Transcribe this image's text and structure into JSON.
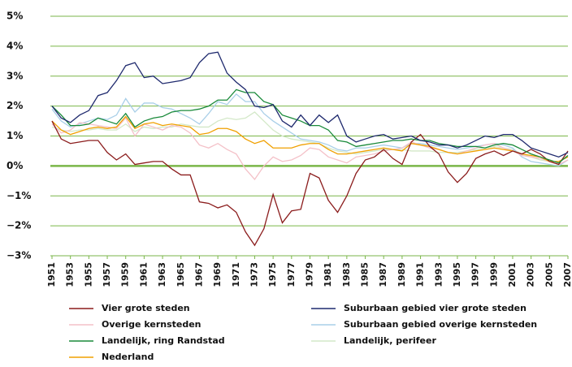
{
  "chart_data": {
    "type": "line",
    "x": [
      1951,
      1952,
      1953,
      1954,
      1955,
      1956,
      1957,
      1958,
      1959,
      1960,
      1961,
      1962,
      1963,
      1964,
      1965,
      1966,
      1967,
      1968,
      1969,
      1970,
      1971,
      1972,
      1973,
      1974,
      1975,
      1976,
      1977,
      1978,
      1979,
      1980,
      1981,
      1982,
      1983,
      1984,
      1985,
      1986,
      1987,
      1988,
      1989,
      1990,
      1991,
      1992,
      1993,
      1994,
      1995,
      1996,
      1997,
      1998,
      1999,
      2000,
      2001,
      2002,
      2003,
      2004,
      2005,
      2006,
      2007
    ],
    "xlim": [
      1951,
      2007
    ],
    "xticks": [
      1951,
      1953,
      1955,
      1957,
      1959,
      1961,
      1963,
      1965,
      1967,
      1969,
      1971,
      1973,
      1975,
      1977,
      1979,
      1981,
      1983,
      1985,
      1987,
      1989,
      1991,
      1993,
      1995,
      1997,
      1999,
      2001,
      2003,
      2005,
      2007
    ],
    "ylim": [
      -3,
      5
    ],
    "yticks": [
      {
        "value": -3,
        "label": "−3%"
      },
      {
        "value": -2,
        "label": "−2%"
      },
      {
        "value": -1,
        "label": "−1%"
      },
      {
        "value": 0,
        "label": "0%"
      },
      {
        "value": 1,
        "label": "1%"
      },
      {
        "value": 2,
        "label": "2%"
      },
      {
        "value": 3,
        "label": "3%"
      },
      {
        "value": 4,
        "label": "4%"
      },
      {
        "value": 5,
        "label": "5%"
      }
    ],
    "grid": true,
    "series": [
      {
        "name": "Vier grote steden",
        "color": "#8b1c1c",
        "values": [
          1.5,
          0.9,
          0.75,
          0.8,
          0.85,
          0.85,
          0.45,
          0.2,
          0.4,
          0.05,
          0.1,
          0.15,
          0.15,
          -0.1,
          -0.3,
          -0.3,
          -1.2,
          -1.25,
          -1.4,
          -1.3,
          -1.55,
          -2.2,
          -2.65,
          -2.1,
          -0.95,
          -1.9,
          -1.5,
          -1.45,
          -0.25,
          -0.4,
          -1.15,
          -1.55,
          -1.0,
          -0.25,
          0.2,
          0.3,
          0.55,
          0.25,
          0.05,
          0.8,
          1.05,
          0.65,
          0.4,
          -0.2,
          -0.55,
          -0.25,
          0.25,
          0.4,
          0.5,
          0.35,
          0.5,
          0.4,
          0.55,
          0.4,
          0.15,
          0.05,
          0.5
        ]
      },
      {
        "name": "Suburbaan gebied vier grote steden",
        "color": "#1f2a6e",
        "values": [
          2.0,
          1.6,
          1.45,
          1.7,
          1.85,
          2.35,
          2.45,
          2.85,
          3.35,
          3.45,
          2.95,
          3.0,
          2.75,
          2.8,
          2.85,
          2.95,
          3.45,
          3.75,
          3.8,
          3.1,
          2.8,
          2.55,
          2.0,
          1.95,
          2.05,
          1.5,
          1.3,
          1.7,
          1.35,
          1.7,
          1.45,
          1.7,
          1.0,
          0.8,
          0.9,
          1.0,
          1.05,
          0.9,
          0.95,
          1.0,
          0.85,
          0.8,
          0.7,
          0.7,
          0.6,
          0.7,
          0.85,
          1.0,
          0.95,
          1.05,
          1.05,
          0.85,
          0.6,
          0.5,
          0.4,
          0.3,
          0.45
        ]
      },
      {
        "name": "Overige kernsteden",
        "color": "#f4c1c8",
        "values": [
          1.4,
          1.1,
          1.2,
          1.45,
          1.4,
          1.35,
          1.3,
          1.25,
          1.6,
          1.0,
          1.4,
          1.3,
          1.2,
          1.35,
          1.3,
          1.1,
          0.7,
          0.6,
          0.75,
          0.55,
          0.4,
          -0.1,
          -0.45,
          0.0,
          0.3,
          0.15,
          0.2,
          0.35,
          0.6,
          0.55,
          0.3,
          0.2,
          0.1,
          0.3,
          0.35,
          0.4,
          0.5,
          0.55,
          0.6,
          0.8,
          0.7,
          0.6,
          0.55,
          0.45,
          0.4,
          0.5,
          0.6,
          0.7,
          0.75,
          0.6,
          0.5,
          0.35,
          0.3,
          0.25,
          0.15,
          0.05,
          0.2
        ]
      },
      {
        "name": "Suburbaan gebied overige kernsteden",
        "color": "#a9cfe8",
        "values": [
          1.9,
          1.5,
          1.3,
          1.4,
          1.5,
          1.6,
          1.55,
          1.7,
          2.25,
          1.8,
          2.1,
          2.1,
          1.95,
          1.9,
          1.75,
          1.6,
          1.4,
          1.75,
          2.15,
          2.05,
          2.4,
          2.15,
          2.15,
          1.75,
          1.5,
          1.3,
          1.1,
          0.9,
          0.85,
          0.8,
          0.7,
          0.55,
          0.5,
          0.6,
          0.6,
          0.65,
          0.7,
          0.65,
          0.6,
          0.75,
          0.75,
          0.7,
          0.65,
          0.6,
          0.55,
          0.6,
          0.65,
          0.7,
          0.75,
          0.7,
          0.6,
          0.3,
          0.15,
          0.1,
          0.05,
          0.0,
          0.2
        ]
      },
      {
        "name": "Landelijk, ring Randstad",
        "color": "#1a8a3a",
        "values": [
          2.0,
          1.7,
          1.35,
          1.35,
          1.4,
          1.6,
          1.5,
          1.4,
          1.75,
          1.3,
          1.5,
          1.6,
          1.65,
          1.8,
          1.85,
          1.85,
          1.9,
          2.0,
          2.2,
          2.2,
          2.55,
          2.45,
          2.45,
          2.15,
          2.05,
          1.7,
          1.6,
          1.5,
          1.35,
          1.35,
          1.2,
          0.85,
          0.8,
          0.65,
          0.7,
          0.75,
          0.8,
          0.85,
          0.85,
          0.9,
          0.85,
          0.85,
          0.75,
          0.7,
          0.65,
          0.65,
          0.65,
          0.6,
          0.7,
          0.75,
          0.7,
          0.55,
          0.4,
          0.3,
          0.2,
          0.1,
          0.35
        ]
      },
      {
        "name": "Landelijk, perifeer",
        "color": "#d3e8c8",
        "values": [
          1.3,
          1.2,
          1.15,
          1.2,
          1.2,
          1.25,
          1.2,
          1.2,
          1.4,
          1.15,
          1.3,
          1.25,
          1.3,
          1.3,
          1.4,
          1.35,
          1.3,
          1.3,
          1.5,
          1.6,
          1.55,
          1.6,
          1.8,
          1.5,
          1.2,
          1.0,
          0.9,
          0.85,
          0.8,
          0.75,
          0.6,
          0.5,
          0.45,
          0.4,
          0.45,
          0.5,
          0.55,
          0.55,
          0.55,
          0.5,
          0.5,
          0.5,
          0.45,
          0.45,
          0.45,
          0.5,
          0.55,
          0.6,
          0.65,
          0.6,
          0.55,
          0.4,
          0.3,
          0.2,
          0.15,
          0.05,
          0.2
        ]
      },
      {
        "name": "Nederland",
        "color": "#f0a000",
        "values": [
          1.5,
          1.2,
          1.05,
          1.15,
          1.25,
          1.3,
          1.25,
          1.3,
          1.65,
          1.25,
          1.4,
          1.45,
          1.35,
          1.4,
          1.35,
          1.3,
          1.05,
          1.1,
          1.25,
          1.25,
          1.15,
          0.9,
          0.75,
          0.85,
          0.6,
          0.6,
          0.6,
          0.7,
          0.75,
          0.75,
          0.55,
          0.4,
          0.4,
          0.45,
          0.5,
          0.55,
          0.6,
          0.55,
          0.5,
          0.75,
          0.7,
          0.65,
          0.55,
          0.45,
          0.4,
          0.45,
          0.5,
          0.55,
          0.6,
          0.55,
          0.5,
          0.4,
          0.35,
          0.3,
          0.15,
          0.15,
          0.3
        ]
      }
    ]
  }
}
